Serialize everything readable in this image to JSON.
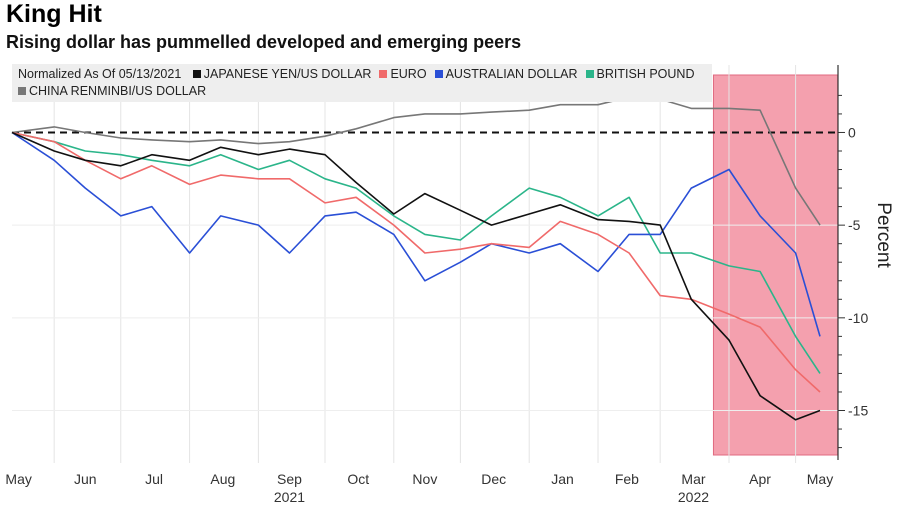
{
  "chart_data": {
    "type": "line",
    "title": "King Hit",
    "subtitle": "Rising dollar has pummelled developed and emerging peers",
    "legend_note": "Normalized As Of 05/13/2021",
    "ylabel": "Percent",
    "ylim": [
      -17.4,
      3.1
    ],
    "yticks": [
      0,
      -5,
      -10,
      -15
    ],
    "ytick_labels": [
      "0",
      "-5",
      "-10",
      "-15"
    ],
    "xlim": [
      "2021-05-13",
      "2022-05-12"
    ],
    "xticks": [
      {
        "label": "May",
        "date": "2021-05-16"
      },
      {
        "label": "Jun",
        "date": "2021-06-15"
      },
      {
        "label": "Jul",
        "date": "2021-07-16"
      },
      {
        "label": "Aug",
        "date": "2021-08-16"
      },
      {
        "label": "Sep",
        "date": "2021-09-15"
      },
      {
        "label": "Oct",
        "date": "2021-10-16"
      },
      {
        "label": "Nov",
        "date": "2021-11-15"
      },
      {
        "label": "Dec",
        "date": "2021-12-16"
      },
      {
        "label": "Jan",
        "date": "2022-01-16"
      },
      {
        "label": "Feb",
        "date": "2022-02-14"
      },
      {
        "label": "Mar",
        "date": "2022-03-16"
      },
      {
        "label": "Apr",
        "date": "2022-04-15"
      },
      {
        "label": "May",
        "date": "2022-05-12"
      }
    ],
    "year_labels": [
      {
        "label": "2021",
        "date": "2021-09-15"
      },
      {
        "label": "2022",
        "date": "2022-03-16"
      }
    ],
    "reference_line": {
      "value": 0,
      "style": "dashed"
    },
    "highlight_range": {
      "start": "2022-03-25",
      "end": "2022-05-20",
      "color": "#f4a0ae"
    },
    "x": [
      "2021-05-13",
      "2021-06-01",
      "2021-06-15",
      "2021-07-01",
      "2021-07-15",
      "2021-08-01",
      "2021-08-15",
      "2021-09-01",
      "2021-09-15",
      "2021-10-01",
      "2021-10-15",
      "2021-11-01",
      "2021-11-15",
      "2021-12-01",
      "2021-12-15",
      "2022-01-01",
      "2022-01-15",
      "2022-02-01",
      "2022-02-15",
      "2022-03-01",
      "2022-03-15",
      "2022-04-01",
      "2022-04-15",
      "2022-05-01",
      "2022-05-12"
    ],
    "series": [
      {
        "name": "JAPANESE YEN/US DOLLAR",
        "color": "#111111",
        "values": [
          0,
          -1,
          -1.5,
          -1.8,
          -1.2,
          -1.5,
          -0.8,
          -1.2,
          -0.9,
          -1.2,
          -2.7,
          -4.4,
          -3.3,
          -4.2,
          -5,
          -4.4,
          -3.9,
          -4.7,
          -4.8,
          -5,
          -9,
          -11.2,
          -14.2,
          -15.5,
          -15
        ]
      },
      {
        "name": "EURO",
        "color": "#f06a6a",
        "values": [
          0,
          -0.5,
          -1.5,
          -2.5,
          -1.8,
          -2.8,
          -2.3,
          -2.5,
          -2.5,
          -3.8,
          -3.5,
          -5,
          -6.5,
          -6.3,
          -6,
          -6.2,
          -4.8,
          -5.5,
          -6.5,
          -8.8,
          -9,
          -9.8,
          -10.5,
          -12.8,
          -14
        ]
      },
      {
        "name": "AUSTRALIAN DOLLAR",
        "color": "#2a4fd6",
        "values": [
          0,
          -1.5,
          -3,
          -4.5,
          -4,
          -6.5,
          -4.5,
          -5,
          -6.5,
          -4.5,
          -4.3,
          -5.5,
          -8,
          -7,
          -6,
          -6.5,
          -6,
          -7.5,
          -5.5,
          -5.5,
          -3,
          -2,
          -4.5,
          -6.5,
          -11
        ]
      },
      {
        "name": "BRITISH POUND",
        "color": "#2bb58a",
        "values": [
          0,
          -0.5,
          -1,
          -1.2,
          -1.5,
          -1.8,
          -1.2,
          -2,
          -1.5,
          -2.5,
          -3,
          -4.5,
          -5.5,
          -5.8,
          -4.5,
          -3,
          -3.5,
          -4.5,
          -3.5,
          -6.5,
          -6.5,
          -7.2,
          -7.5,
          -11,
          -13
        ]
      },
      {
        "name": "CHINA RENMINBI/US DOLLAR",
        "color": "#777777",
        "values": [
          0,
          0.3,
          0,
          -0.3,
          -0.4,
          -0.5,
          -0.4,
          -0.6,
          -0.5,
          -0.2,
          0.2,
          0.8,
          1,
          1,
          1.1,
          1.2,
          1.5,
          1.5,
          1.9,
          1.8,
          1.3,
          1.3,
          1.2,
          -3,
          -5
        ]
      }
    ]
  }
}
